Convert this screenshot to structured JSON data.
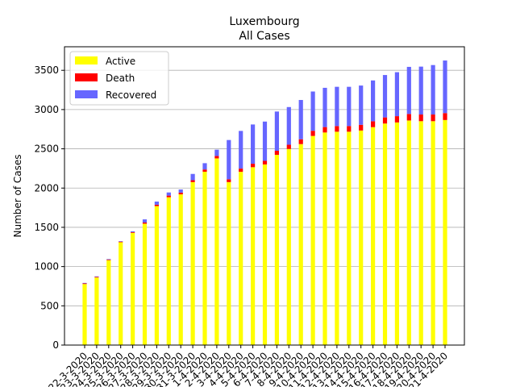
{
  "chart_data": {
    "type": "bar",
    "stacked": true,
    "title": "Luxembourg",
    "subtitle": "All Cases",
    "xlabel": "",
    "ylabel": "Number of Cases",
    "ylim": [
      0,
      3800
    ],
    "yticks": [
      0,
      500,
      1000,
      1500,
      2000,
      2500,
      3000,
      3500
    ],
    "grid": "horizontal",
    "legend_position": "top-left",
    "categories": [
      "22-3-2020",
      "23-3-2020",
      "24-3-2020",
      "25-3-2020",
      "26-3-2020",
      "27-3-2020",
      "28-3-2020",
      "29-3-2020",
      "30-3-2020",
      "31-3-2020",
      "1-4-2020",
      "2-4-2020",
      "3-4-2020",
      "4-4-2020",
      "5-4-2020",
      "6-4-2020",
      "7-4-2020",
      "8-4-2020",
      "9-4-2020",
      "10-4-2020",
      "11-4-2020",
      "12-4-2020",
      "13-4-2020",
      "14-4-2020",
      "15-4-2020",
      "16-4-2020",
      "17-4-2020",
      "18-4-2020",
      "19-4-2020",
      "20-4-2020",
      "21-4-2020"
    ],
    "series": [
      {
        "name": "Active",
        "color": "#ffff00",
        "values": [
          778,
          861,
          1082,
          1310,
          1430,
          1546,
          1770,
          1883,
          1920,
          2076,
          2208,
          2378,
          2076,
          2207,
          2266,
          2301,
          2423,
          2498,
          2560,
          2664,
          2708,
          2718,
          2718,
          2733,
          2776,
          2822,
          2836,
          2861,
          2852,
          2852,
          2867
        ]
      },
      {
        "name": "Death",
        "color": "#ff0000",
        "values": [
          8,
          8,
          8,
          8,
          8,
          15,
          18,
          21,
          22,
          24,
          29,
          31,
          36,
          41,
          44,
          46,
          52,
          54,
          62,
          66,
          69,
          72,
          72,
          73,
          75,
          78,
          80,
          83,
          85,
          85,
          88
        ]
      },
      {
        "name": "Recovered",
        "color": "#6666ff",
        "values": [
          6,
          6,
          6,
          6,
          11,
          40,
          40,
          40,
          40,
          80,
          80,
          80,
          500,
          480,
          500,
          500,
          500,
          480,
          500,
          500,
          500,
          500,
          500,
          500,
          520,
          540,
          560,
          600,
          610,
          630,
          670
        ]
      }
    ]
  }
}
